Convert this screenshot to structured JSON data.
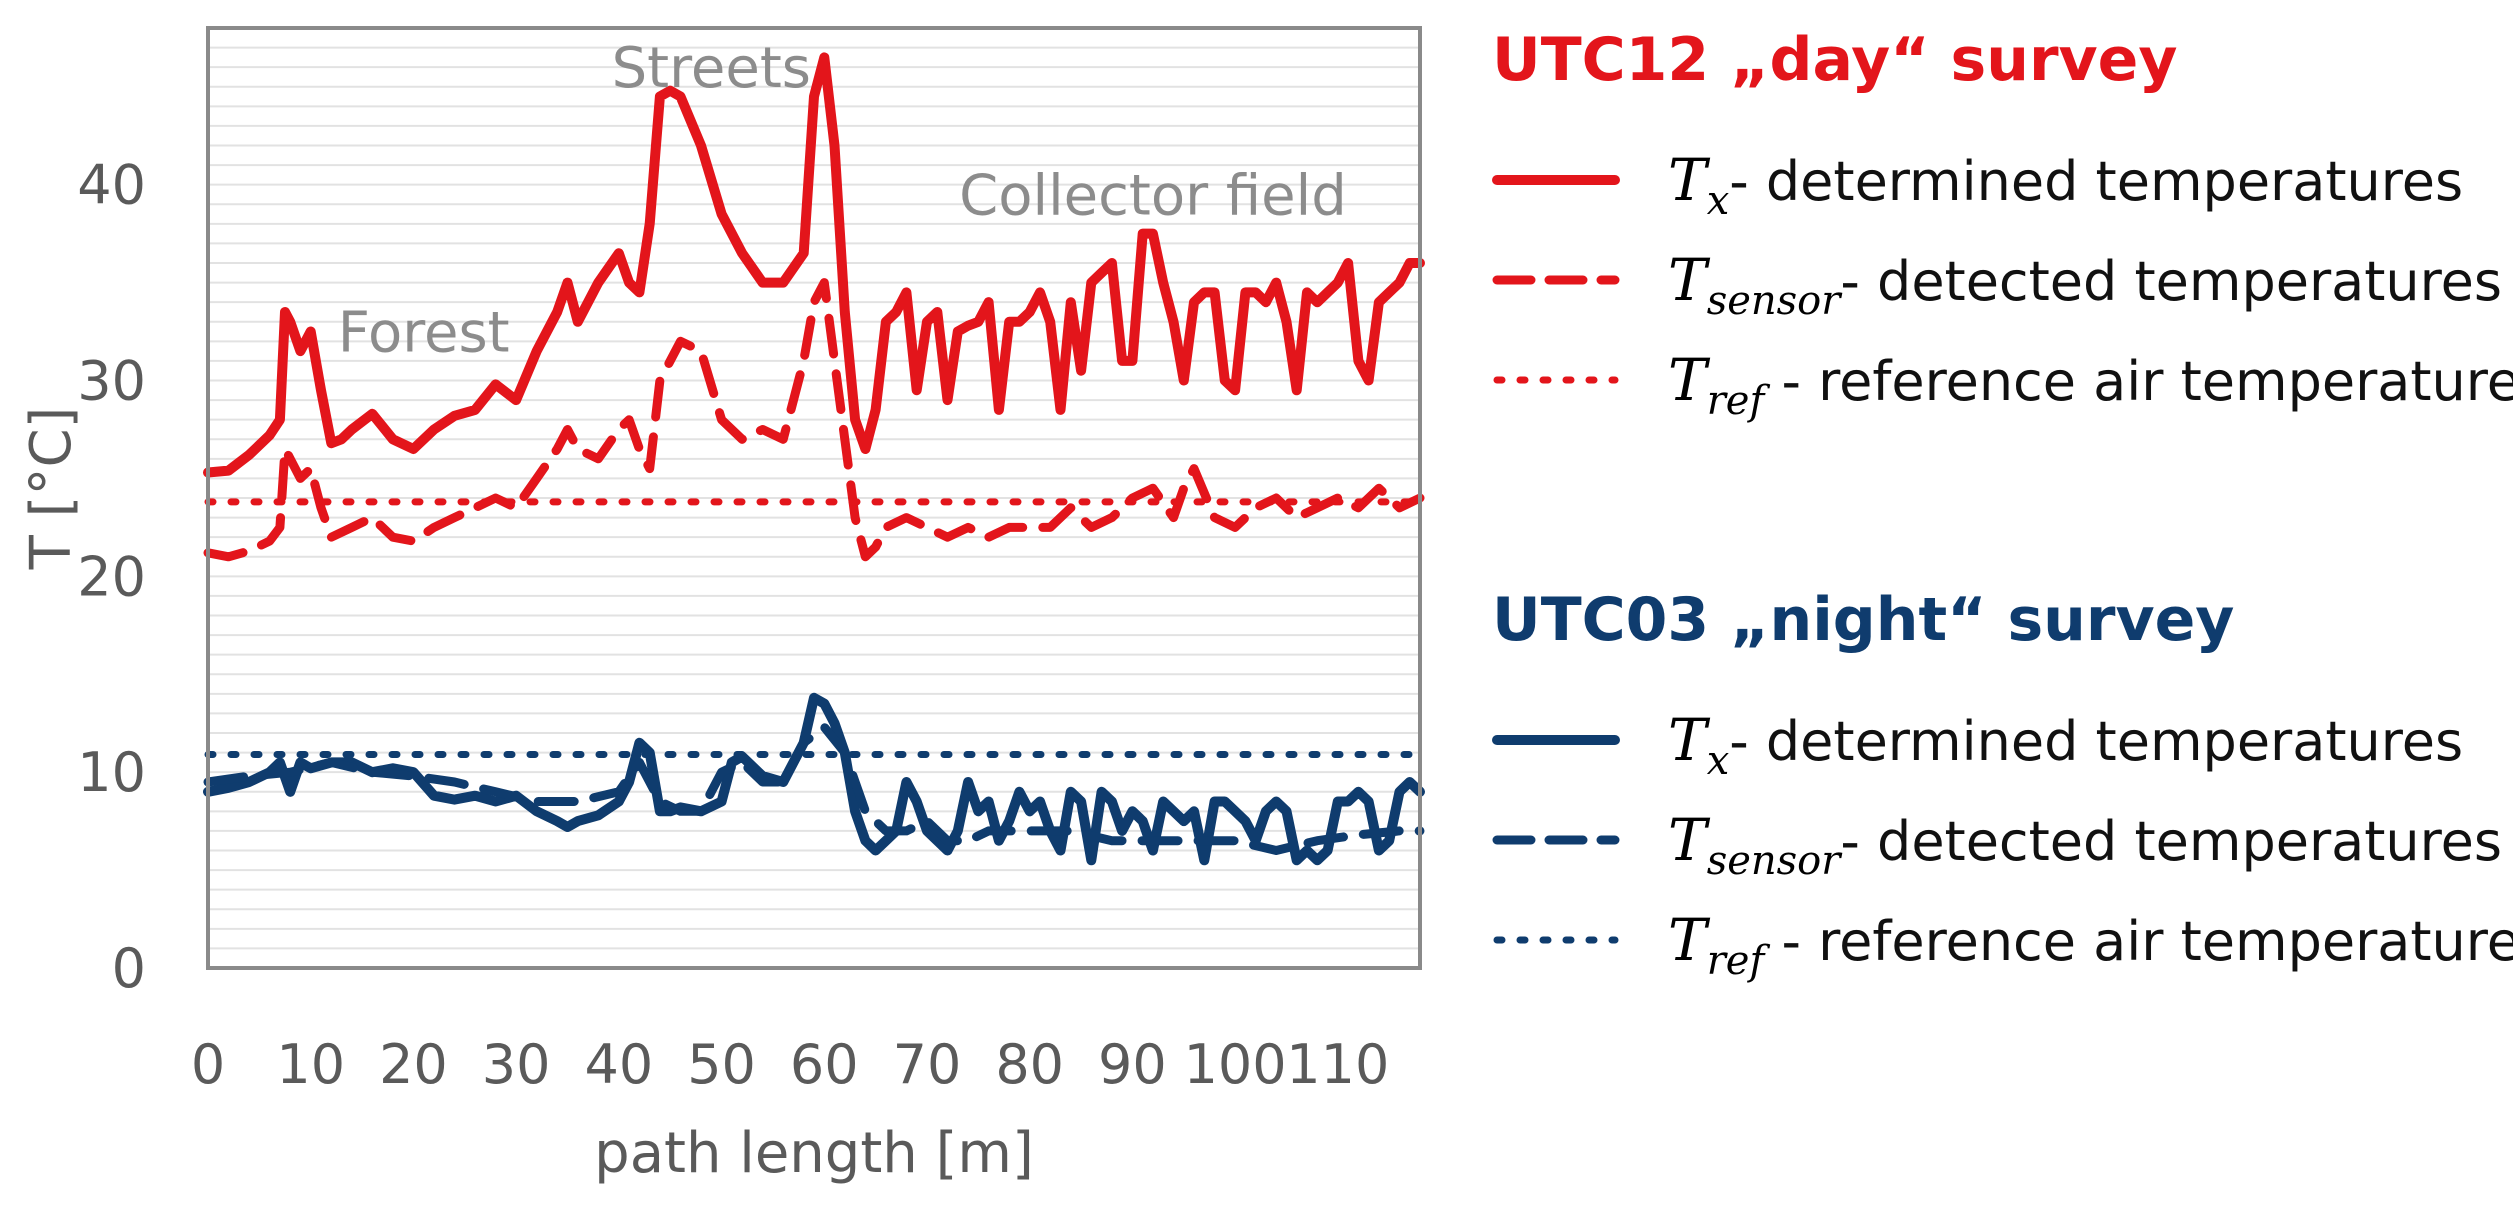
{
  "chart_data": {
    "type": "line",
    "xlabel": "path length [m]",
    "ylabel": "T [°C]",
    "xlim": [
      0,
      118
    ],
    "ylim": [
      0,
      48
    ],
    "x_ticks": [
      0,
      10,
      20,
      30,
      40,
      50,
      60,
      70,
      80,
      90,
      100,
      110
    ],
    "y_ticks": [
      0,
      10,
      20,
      30,
      40
    ],
    "grid": "horizontal minor lines",
    "legend_position": "right",
    "colors": {
      "day": "#e3151b",
      "night": "#0f3c6e",
      "grid": "#e2e2e2",
      "axis": "#8a8a8a"
    },
    "annotations": [
      {
        "text": "Forest",
        "x": 21,
        "y": 32.5
      },
      {
        "text": "Streets",
        "x": 49,
        "y": 46
      },
      {
        "text": "Collector field",
        "x": 92,
        "y": 39.5
      }
    ],
    "groups": [
      {
        "title": "UTC12 „day“ survey",
        "color": "#e3151b"
      },
      {
        "title": "UTC03 „night“ survey",
        "color": "#0f3c6e"
      }
    ],
    "legend_entries": [
      {
        "symbol": "T",
        "sub": "x",
        "label": "- determined temperatures",
        "style": "solid"
      },
      {
        "symbol": "T",
        "sub": "sensor",
        "label": "- detected temperatures",
        "style": "dashed"
      },
      {
        "symbol": "T",
        "sub": "ref",
        "label": " - reference air temperature",
        "style": "dotted"
      }
    ],
    "series": [
      {
        "group": "day",
        "style": "solid",
        "x": [
          0,
          2,
          4,
          6,
          7,
          7.5,
          8,
          9,
          10,
          11,
          12,
          13,
          14,
          16,
          18,
          20,
          22,
          24,
          26,
          28,
          30,
          32,
          34,
          35,
          36,
          38,
          40,
          41,
          42,
          43,
          44,
          45,
          46,
          48,
          50,
          52,
          54,
          56,
          58,
          59,
          60,
          61,
          62,
          63,
          64,
          65,
          66,
          67,
          68,
          69,
          70,
          71,
          72,
          73,
          74,
          75,
          76,
          77,
          78,
          79,
          80,
          81,
          82,
          83,
          84,
          85,
          86,
          87,
          88,
          89,
          90,
          91,
          92,
          93,
          94,
          95,
          96,
          97,
          98,
          99,
          100,
          101,
          102,
          103,
          104,
          105,
          106,
          107,
          108,
          109,
          110,
          111,
          112,
          113,
          114,
          115,
          116,
          117,
          118
        ],
        "y": [
          25.3,
          25.4,
          26.2,
          27.2,
          28.0,
          33.5,
          33.0,
          31.5,
          32.5,
          29.5,
          26.8,
          27.0,
          27.5,
          28.3,
          27.0,
          26.5,
          27.5,
          28.2,
          28.5,
          29.8,
          29.0,
          31.5,
          33.5,
          35.0,
          33.0,
          35.0,
          36.5,
          35.0,
          34.5,
          38.0,
          44.5,
          44.8,
          44.5,
          42.0,
          38.5,
          36.5,
          35.0,
          35.0,
          36.5,
          44.5,
          46.5,
          42.0,
          33.5,
          28.0,
          26.5,
          28.5,
          33.0,
          33.5,
          34.5,
          29.5,
          33.0,
          33.5,
          29.0,
          32.5,
          32.8,
          33.0,
          34.0,
          28.5,
          33.0,
          33.0,
          33.5,
          34.5,
          33.0,
          28.5,
          34.0,
          30.5,
          35.0,
          35.5,
          36.0,
          31.0,
          31.0,
          37.5,
          37.5,
          35.0,
          33.0,
          30.0,
          34.0,
          34.5,
          34.5,
          30.0,
          29.5,
          34.5,
          34.5,
          34.0,
          35.0,
          33.0,
          29.5,
          34.5,
          34.0,
          34.5,
          35.0,
          36.0,
          31.0,
          30.0,
          34.0,
          34.5,
          35.0,
          36.0,
          36.0
        ]
      },
      {
        "group": "day",
        "style": "dashed",
        "x": [
          0,
          2,
          4,
          6,
          7,
          7.5,
          8,
          9,
          10,
          11,
          12,
          14,
          16,
          18,
          20,
          22,
          24,
          26,
          28,
          30,
          32,
          34,
          35,
          36,
          38,
          40,
          41,
          42,
          43,
          44,
          46,
          48,
          50,
          52,
          54,
          56,
          57,
          58,
          59,
          60,
          61,
          62,
          63,
          64,
          65,
          66,
          68,
          70,
          72,
          74,
          76,
          78,
          80,
          82,
          84,
          86,
          88,
          90,
          92,
          94,
          95,
          96,
          98,
          100,
          102,
          104,
          106,
          108,
          110,
          112,
          114,
          116,
          118
        ],
        "y": [
          21.2,
          21.0,
          21.3,
          21.8,
          22.5,
          26.5,
          26.0,
          25.0,
          25.5,
          23.5,
          22.0,
          22.5,
          23.0,
          22.0,
          21.8,
          22.5,
          23.0,
          23.5,
          24.0,
          23.5,
          25.0,
          26.5,
          27.5,
          26.5,
          26.0,
          27.5,
          28.0,
          26.5,
          25.5,
          30.0,
          32.0,
          31.5,
          28.0,
          27.0,
          27.5,
          27.0,
          29.0,
          31.0,
          34.0,
          35.0,
          31.0,
          27.0,
          23.0,
          21.0,
          21.5,
          22.5,
          23.0,
          22.5,
          22.0,
          22.5,
          22.0,
          22.5,
          22.5,
          22.5,
          23.5,
          22.5,
          23.0,
          24.0,
          24.5,
          23.0,
          24.5,
          25.5,
          23.0,
          22.5,
          23.5,
          24.0,
          23.0,
          23.5,
          24.0,
          23.5,
          24.5,
          23.5,
          24.0
        ]
      },
      {
        "group": "day",
        "style": "dotted",
        "x": [
          0,
          118
        ],
        "y": [
          23.8,
          23.8
        ]
      },
      {
        "group": "night",
        "style": "solid",
        "x": [
          0,
          2,
          4,
          6,
          7,
          8,
          9,
          10,
          12,
          14,
          16,
          18,
          20,
          22,
          24,
          26,
          28,
          30,
          32,
          34,
          35,
          36,
          38,
          40,
          41,
          42,
          43,
          44,
          45,
          46,
          48,
          50,
          51,
          52,
          54,
          56,
          58,
          59,
          60,
          61,
          62,
          63,
          64,
          65,
          66,
          67,
          68,
          69,
          70,
          71,
          72,
          73,
          74,
          75,
          76,
          77,
          78,
          79,
          80,
          81,
          82,
          83,
          84,
          85,
          86,
          87,
          88,
          89,
          90,
          91,
          92,
          93,
          94,
          95,
          96,
          97,
          98,
          99,
          100,
          101,
          102,
          103,
          104,
          105,
          106,
          107,
          108,
          109,
          110,
          111,
          112,
          113,
          114,
          115,
          116,
          117,
          118
        ],
        "y": [
          9.0,
          9.2,
          9.5,
          10.0,
          10.5,
          9.0,
          10.5,
          10.2,
          10.5,
          10.5,
          10.0,
          10.2,
          10.0,
          8.8,
          8.6,
          8.8,
          8.5,
          8.8,
          8.0,
          7.5,
          7.2,
          7.5,
          7.8,
          8.5,
          9.5,
          11.5,
          11.0,
          8.0,
          8.0,
          8.2,
          8.0,
          8.5,
          10.5,
          10.8,
          9.8,
          9.5,
          11.5,
          13.8,
          13.5,
          12.5,
          11.0,
          8.0,
          6.5,
          6.0,
          6.5,
          7.0,
          9.5,
          8.5,
          7.0,
          6.5,
          6.0,
          7.0,
          9.5,
          8.0,
          8.5,
          6.5,
          7.5,
          9.0,
          8.0,
          8.5,
          7.0,
          6.0,
          9.0,
          8.5,
          5.5,
          9.0,
          8.5,
          7.0,
          8.0,
          7.5,
          6.0,
          8.5,
          8.0,
          7.5,
          8.0,
          5.5,
          8.5,
          8.5,
          8.0,
          7.5,
          6.5,
          8.0,
          8.5,
          8.0,
          5.5,
          6.0,
          5.5,
          6.0,
          8.5,
          8.5,
          9.0,
          8.5,
          6.0,
          6.5,
          9.0,
          9.5,
          9.0
        ]
      },
      {
        "group": "night",
        "style": "dashed",
        "x": [
          0,
          4,
          8,
          12,
          16,
          20,
          24,
          28,
          32,
          36,
          40,
          42,
          44,
          46,
          48,
          50,
          52,
          54,
          56,
          58,
          60,
          62,
          64,
          66,
          68,
          70,
          72,
          74,
          76,
          78,
          80,
          84,
          88,
          92,
          96,
          100,
          104,
          108,
          112,
          116,
          118
        ],
        "y": [
          9.5,
          9.8,
          10.0,
          10.5,
          10.0,
          9.8,
          9.5,
          9.0,
          8.5,
          8.5,
          9.0,
          10.5,
          8.5,
          8.0,
          8.0,
          10.0,
          10.5,
          9.5,
          9.5,
          11.5,
          12.3,
          11.0,
          8.0,
          7.0,
          7.0,
          7.5,
          6.5,
          6.5,
          7.0,
          7.0,
          7.0,
          7.0,
          6.5,
          6.5,
          6.5,
          6.5,
          6.0,
          6.5,
          6.8,
          7.0,
          7.0
        ]
      },
      {
        "group": "night",
        "style": "dotted",
        "x": [
          0,
          118
        ],
        "y": [
          10.9,
          10.9
        ]
      }
    ]
  }
}
